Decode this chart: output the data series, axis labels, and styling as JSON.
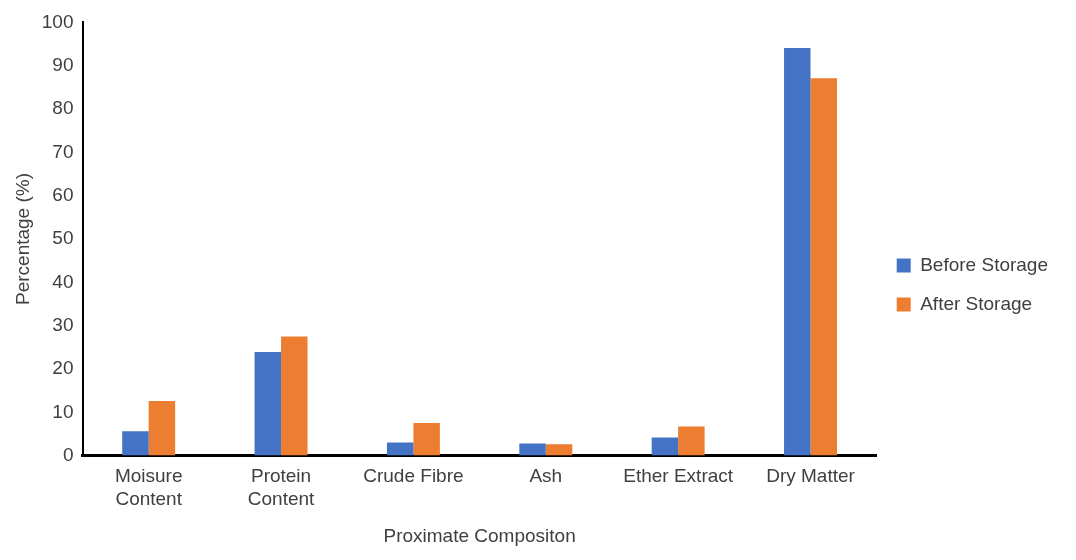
{
  "chart_data": {
    "type": "bar",
    "xlabel": "Proximate Compositon",
    "ylabel": "Percentage (%)",
    "categories": [
      [
        "Moisure",
        "Content"
      ],
      [
        "Protein",
        "Content"
      ],
      "Crude Fibre",
      "Ash",
      "Ether Extract",
      "Dry Matter"
    ],
    "series": [
      {
        "name": "Before Storage",
        "color": "#4472c4",
        "values": [
          5.6,
          23.9,
          3.0,
          2.8,
          4.2,
          94.1
        ]
      },
      {
        "name": "After Storage",
        "color": "#ed7d31",
        "values": [
          12.6,
          27.5,
          7.5,
          2.6,
          6.7,
          87.1
        ]
      }
    ],
    "ylim": [
      0,
      100
    ],
    "yticks": [
      0,
      10,
      20,
      30,
      40,
      50,
      60,
      70,
      80,
      90,
      100
    ],
    "grid": false,
    "legend": "right"
  }
}
